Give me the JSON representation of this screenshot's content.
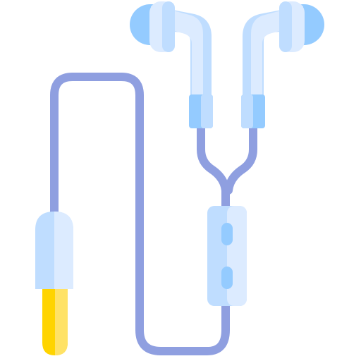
{
  "icon": {
    "name": "earphones-icon",
    "colors": {
      "cable": "#8F9FE0",
      "bud_light": "#DCEBFF",
      "bud_mid": "#BFDDFF",
      "bud_dark": "#94CBFF",
      "plug_yellow": "#FFD400",
      "plug_yellow_light": "#FFE266",
      "background": "#FFFFFF"
    }
  }
}
